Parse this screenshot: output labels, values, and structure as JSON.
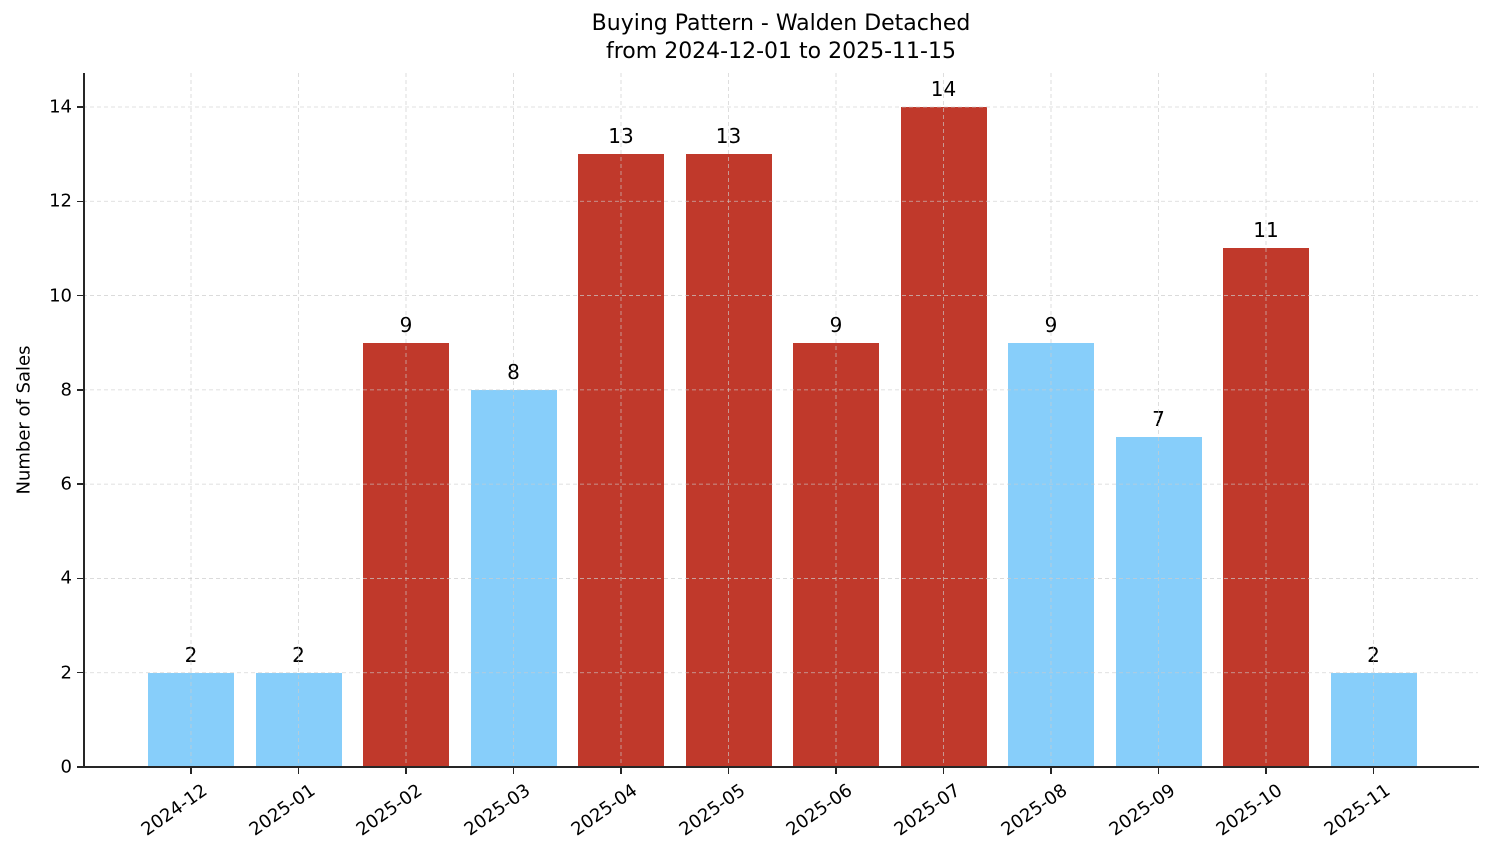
{
  "chart_data": {
    "type": "bar",
    "title": "Buying Pattern - Walden Detached",
    "subtitle": "from 2024-12-01 to 2025-11-15",
    "xlabel": "",
    "ylabel": "Number of Sales",
    "categories": [
      "2024-12",
      "2025-01",
      "2025-02",
      "2025-03",
      "2025-04",
      "2025-05",
      "2025-06",
      "2025-07",
      "2025-08",
      "2025-09",
      "2025-10",
      "2025-11"
    ],
    "values": [
      2,
      2,
      9,
      8,
      13,
      13,
      9,
      14,
      9,
      7,
      11,
      2
    ],
    "bar_colors": [
      "#87cefa",
      "#87cefa",
      "#c0392b",
      "#87cefa",
      "#c0392b",
      "#c0392b",
      "#c0392b",
      "#c0392b",
      "#87cefa",
      "#87cefa",
      "#c0392b",
      "#87cefa"
    ],
    "ylim": [
      0,
      14.7
    ],
    "yticks": [
      0,
      2,
      4,
      6,
      8,
      10,
      12,
      14
    ],
    "grid": true,
    "data_labels": true,
    "legend": null
  },
  "colors": {
    "high": "#c0392b",
    "low": "#87cefa",
    "grid": "#cccccc",
    "axis": "#262626"
  }
}
